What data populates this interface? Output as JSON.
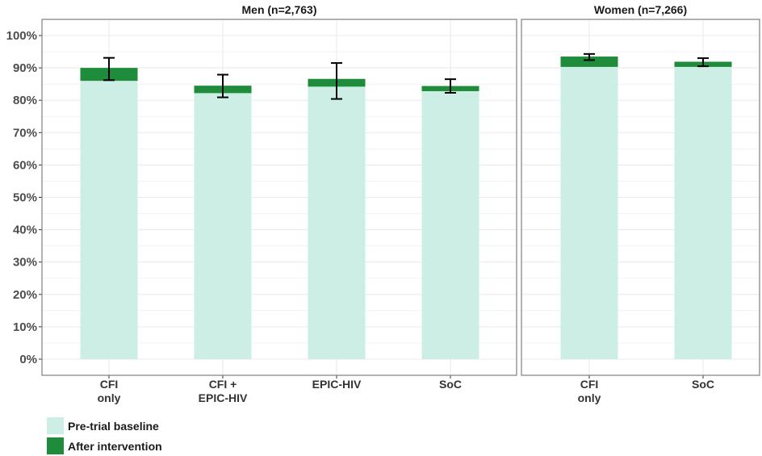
{
  "chart_data": {
    "type": "bar",
    "stacked": true,
    "y_tick_labels": [
      "0%",
      "10%",
      "20%",
      "30%",
      "40%",
      "50%",
      "60%",
      "70%",
      "80%",
      "90%",
      "100%"
    ],
    "ylim": [
      0,
      100
    ],
    "grid": true,
    "legend_position": "bottom-left",
    "colors": {
      "baseline": "#cdeee4",
      "after": "#1e8c3a",
      "grid": "#ebebeb",
      "panel_border": "#7f7f7f",
      "errorbar": "#000000"
    },
    "legend": [
      {
        "key": "baseline",
        "label": "Pre-trial baseline"
      },
      {
        "key": "after",
        "label": "After intervention"
      }
    ],
    "panels": [
      {
        "title": "Men (n=2,763)",
        "categories": [
          {
            "label": [
              "CFI",
              "only"
            ],
            "baseline": 86.0,
            "after": 90.0,
            "err_low": 86.2,
            "err_high": 93.1
          },
          {
            "label": [
              "CFI +",
              "EPIC-HIV"
            ],
            "baseline": 82.2,
            "after": 84.5,
            "err_low": 80.9,
            "err_high": 87.9
          },
          {
            "label": [
              "EPIC-HIV"
            ],
            "baseline": 84.2,
            "after": 86.6,
            "err_low": 80.4,
            "err_high": 91.5
          },
          {
            "label": [
              "SoC"
            ],
            "baseline": 82.8,
            "after": 84.4,
            "err_low": 82.3,
            "err_high": 86.5
          }
        ]
      },
      {
        "title": "Women (n=7,266)",
        "categories": [
          {
            "label": [
              "CFI",
              "only"
            ],
            "baseline": 90.3,
            "after": 93.5,
            "err_low": 92.4,
            "err_high": 94.3
          },
          {
            "label": [
              "SoC"
            ],
            "baseline": 90.3,
            "after": 91.9,
            "err_low": 90.5,
            "err_high": 93.0
          }
        ]
      }
    ]
  }
}
